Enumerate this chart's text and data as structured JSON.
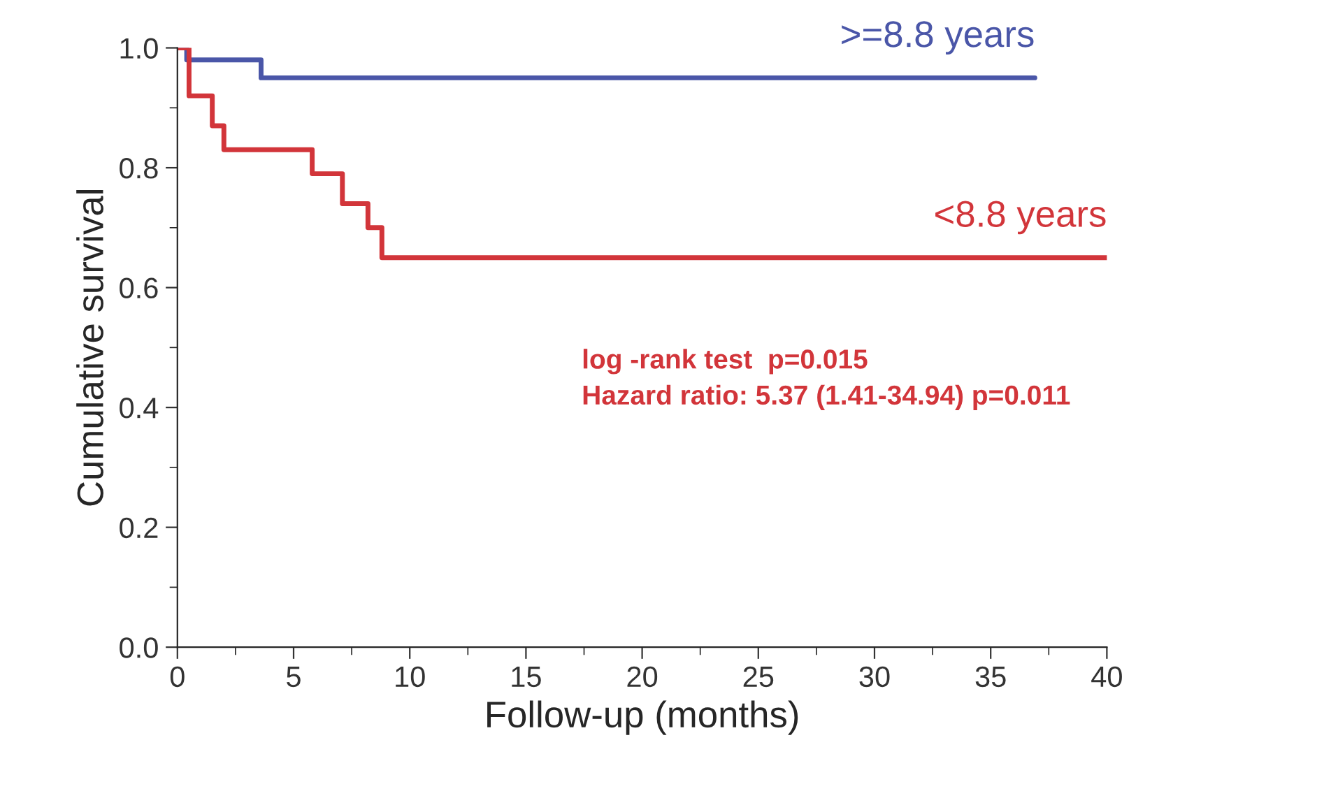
{
  "chart_data": {
    "type": "step",
    "xlabel": "Follow-up (months)",
    "ylabel": "Cumulative survival",
    "xlim": [
      0,
      40
    ],
    "xticks": [
      0,
      5,
      10,
      15,
      20,
      25,
      30,
      35,
      40
    ],
    "ylim": [
      0,
      1
    ],
    "yticks": [
      {
        "value": 0,
        "label": "0.0"
      },
      0.2,
      0.4,
      0.6,
      0.8,
      {
        "value": 1,
        "label": "1.0"
      }
    ],
    "grid": false,
    "legend": false,
    "series": [
      {
        "name": ">=8.8 years",
        "color": "#4a56a8",
        "x": [
          0,
          0.4,
          3.6,
          36.9
        ],
        "values": [
          1.0,
          0.98,
          0.95,
          0.95
        ]
      },
      {
        "name": "<8.8 years",
        "color": "#d2353a",
        "x": [
          0,
          0.5,
          1.5,
          2.0,
          5.8,
          7.1,
          8.2,
          8.8,
          40
        ],
        "values": [
          1.0,
          0.92,
          0.87,
          0.83,
          0.79,
          0.74,
          0.7,
          0.65,
          0.65
        ]
      }
    ],
    "annotations": [
      "log -rank test  p=0.015",
      "Hazard ratio: 5.37 (1.41-34.94) p=0.011"
    ]
  }
}
